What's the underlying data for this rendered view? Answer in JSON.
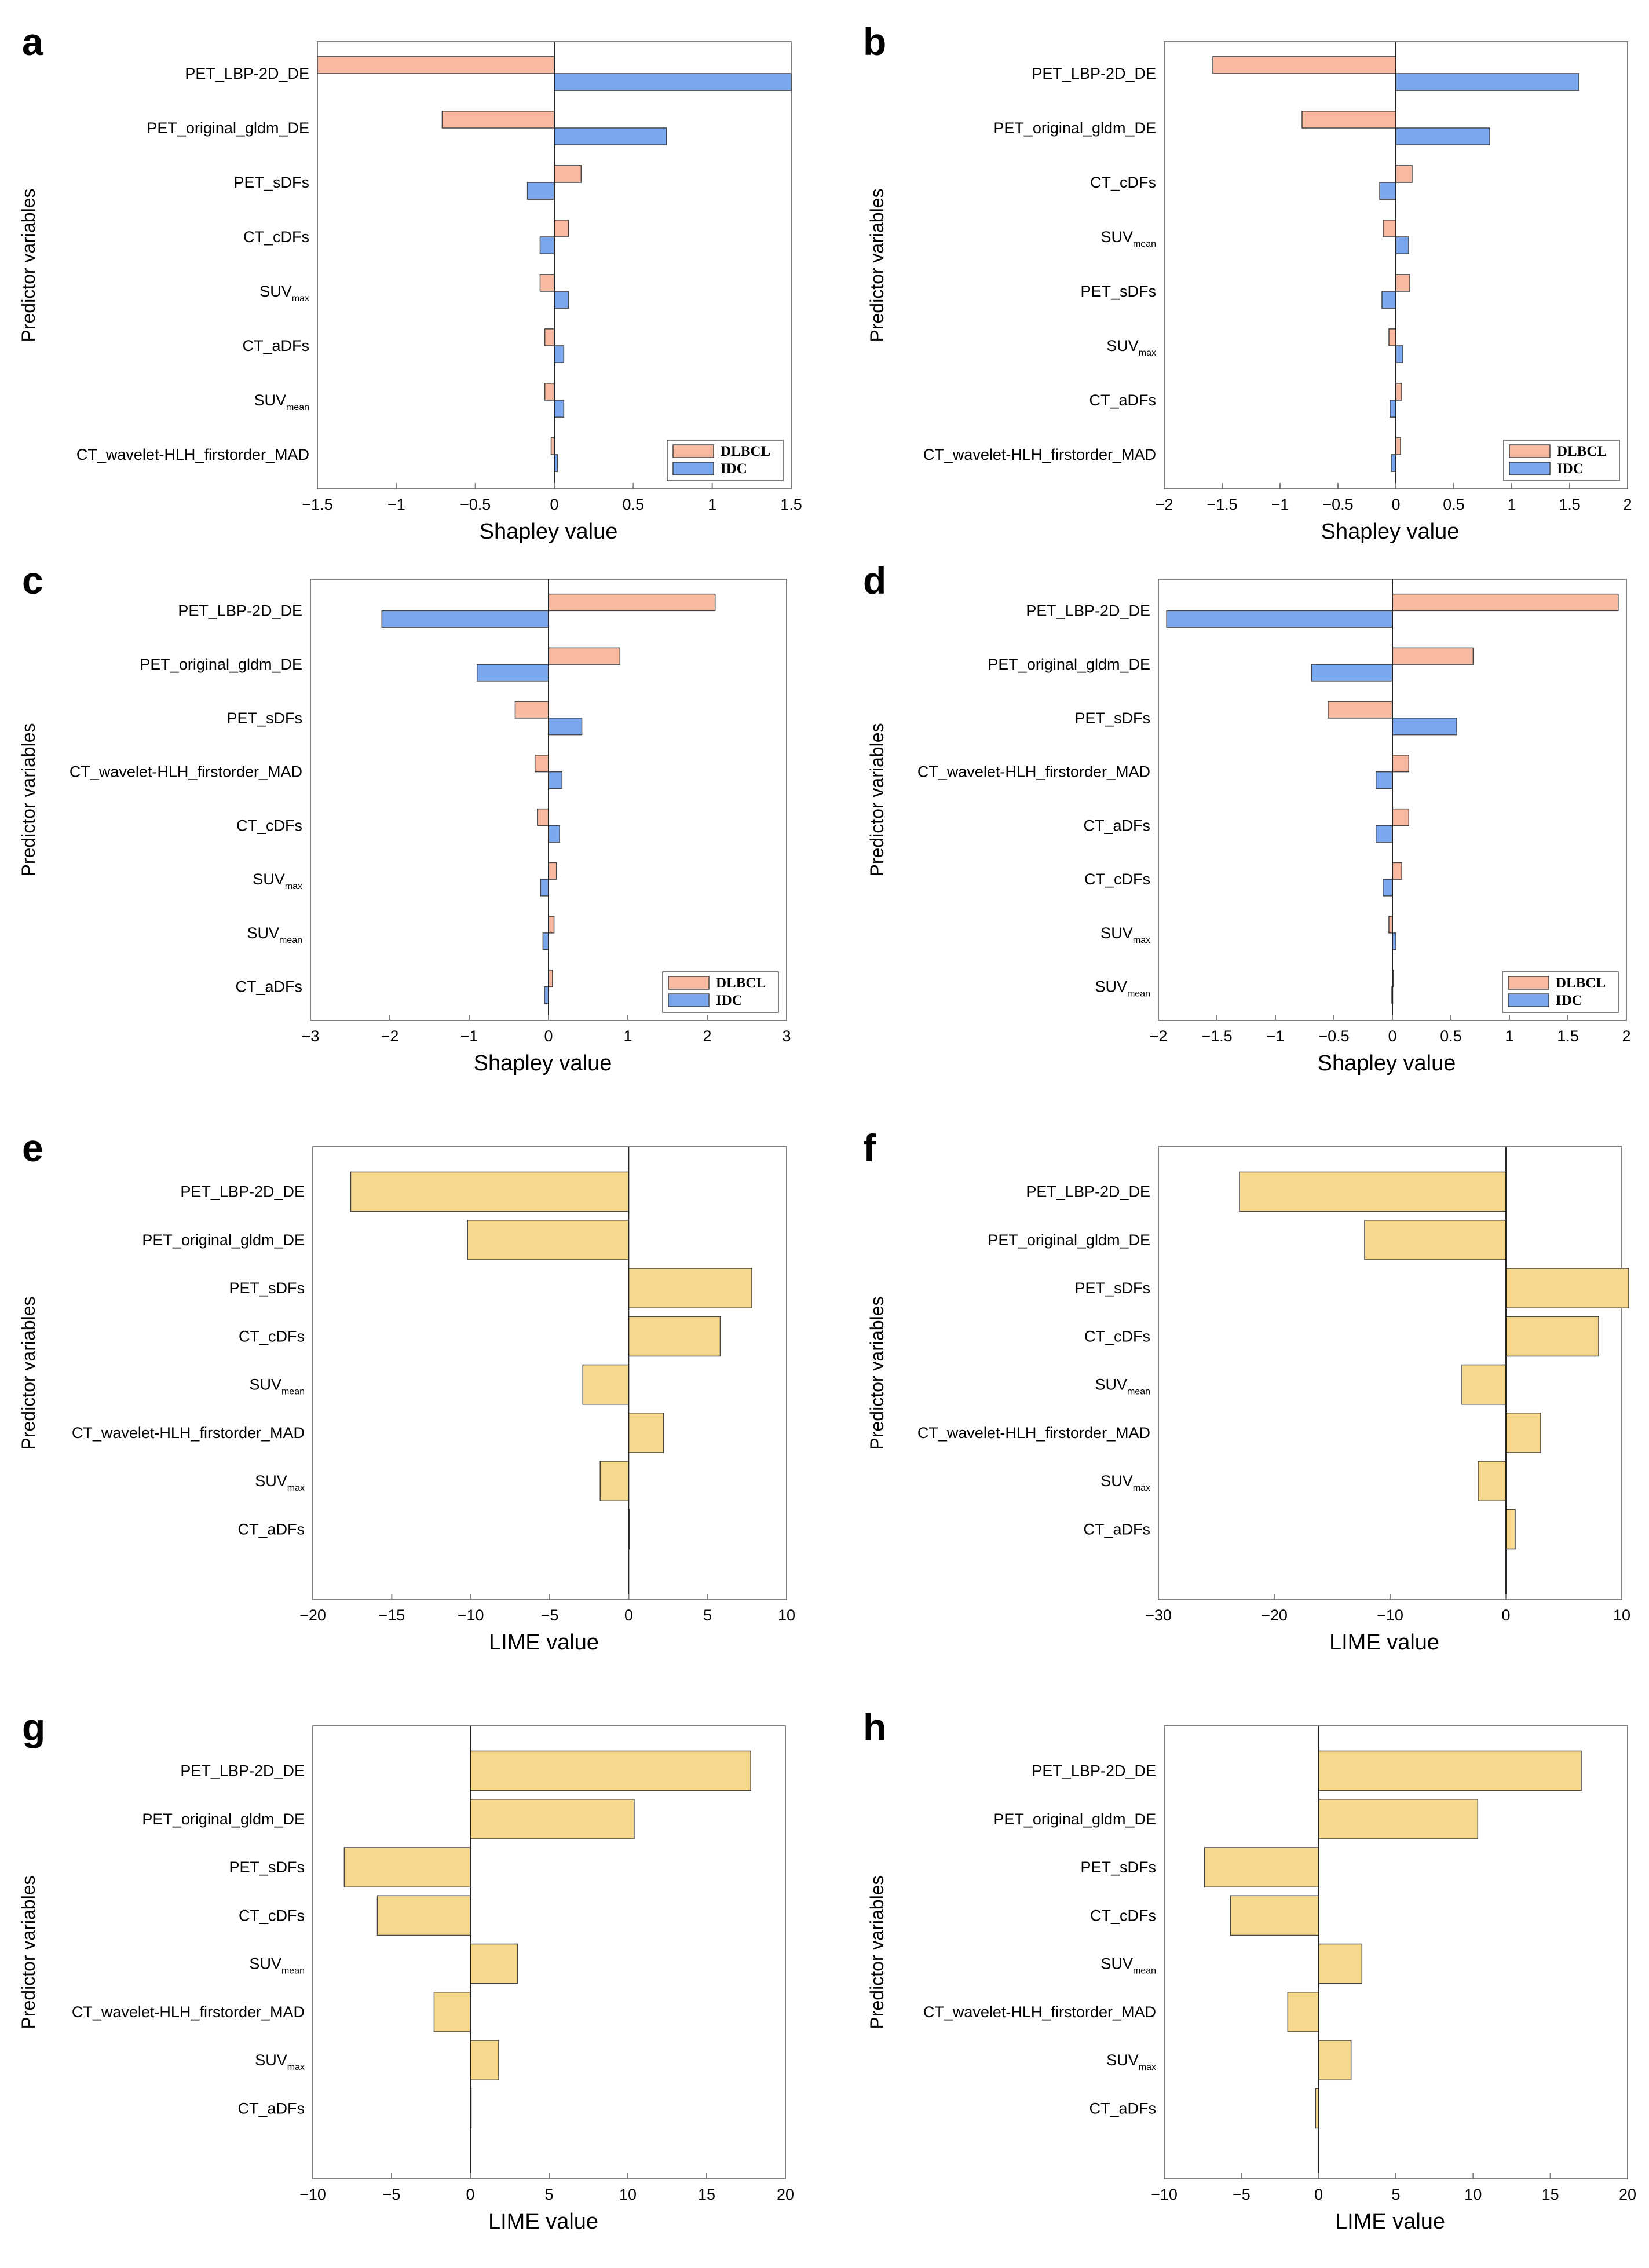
{
  "colors": {
    "dlbcl": "#F8B9A0",
    "idc": "#7BA7EE",
    "lime": "#F6D98C",
    "edge": "#444444",
    "axis": "#808080"
  },
  "chart_data": [
    {
      "panel": "a",
      "type": "bar",
      "orientation": "horizontal",
      "mode": "shap",
      "xlabel": "Shapley value",
      "ylabel": "Predictor variables",
      "xlim": [
        -1.5,
        1.5
      ],
      "xticks": [
        "-1.5",
        "-1",
        "-0.5",
        "0",
        "0.5",
        "1",
        "1.5"
      ],
      "categories": [
        "PET_LBP-2D_DE",
        "PET_original_gldm_DE",
        "PET_sDFs",
        "CT_cDFs",
        "SUVmax",
        "CT_aDFs",
        "SUVmean",
        "CT_wavelet-HLH_firstorder_MAD"
      ],
      "series": [
        {
          "name": "DLBCL",
          "values": [
            -1.5,
            -0.71,
            0.17,
            0.09,
            -0.09,
            -0.06,
            -0.06,
            -0.02
          ]
        },
        {
          "name": "IDC",
          "values": [
            1.5,
            0.71,
            -0.17,
            -0.09,
            0.09,
            0.06,
            0.06,
            0.02
          ]
        }
      ],
      "legend": [
        "DLBCL",
        "IDC"
      ],
      "legend_position": "bottom-right"
    },
    {
      "panel": "b",
      "type": "bar",
      "orientation": "horizontal",
      "mode": "shap",
      "xlabel": "Shapley value",
      "ylabel": "Predictor variables",
      "xlim": [
        -2,
        2
      ],
      "xticks": [
        "-2",
        "-1.5",
        "-1",
        "-0.5",
        "0",
        "0.5",
        "1",
        "1.5",
        "2"
      ],
      "categories": [
        "PET_LBP-2D_DE",
        "PET_original_gldm_DE",
        "CT_cDFs",
        "SUVmean",
        "PET_sDFs",
        "SUVmax",
        "CT_aDFs",
        "CT_wavelet-HLH_firstorder_MAD"
      ],
      "series": [
        {
          "name": "DLBCL",
          "values": [
            -1.58,
            -0.81,
            0.14,
            -0.11,
            0.12,
            -0.06,
            0.05,
            0.04
          ]
        },
        {
          "name": "IDC",
          "values": [
            1.58,
            0.81,
            -0.14,
            0.11,
            -0.12,
            0.06,
            -0.05,
            -0.04
          ]
        }
      ],
      "legend": [
        "DLBCL",
        "IDC"
      ],
      "legend_position": "bottom-right"
    },
    {
      "panel": "c",
      "type": "bar",
      "orientation": "horizontal",
      "mode": "shap",
      "xlabel": "Shapley value",
      "ylabel": "Predictor variables",
      "xlim": [
        -3,
        3
      ],
      "xticks": [
        "-3",
        "-2",
        "-1",
        "0",
        "1",
        "2",
        "3"
      ],
      "categories": [
        "PET_LBP-2D_DE",
        "PET_original_gldm_DE",
        "PET_sDFs",
        "CT_wavelet-HLH_firstorder_MAD",
        "CT_cDFs",
        "SUVmax",
        "SUVmean",
        "CT_aDFs"
      ],
      "series": [
        {
          "name": "DLBCL",
          "values": [
            2.1,
            0.9,
            -0.42,
            -0.17,
            -0.14,
            0.1,
            0.07,
            0.05
          ]
        },
        {
          "name": "IDC",
          "values": [
            -2.1,
            -0.9,
            0.42,
            0.17,
            0.14,
            -0.1,
            -0.07,
            -0.05
          ]
        }
      ],
      "legend": [
        "DLBCL",
        "IDC"
      ],
      "legend_position": "bottom-right"
    },
    {
      "panel": "d",
      "type": "bar",
      "orientation": "horizontal",
      "mode": "shap",
      "xlabel": "Shapley value",
      "ylabel": "Predictor variables",
      "xlim": [
        -2,
        2
      ],
      "xticks": [
        "-2",
        "-1.5",
        "-1",
        "-0.5",
        "0",
        "0.5",
        "1",
        "1.5",
        "2"
      ],
      "categories": [
        "PET_LBP-2D_DE",
        "PET_original_gldm_DE",
        "PET_sDFs",
        "CT_wavelet-HLH_firstorder_MAD",
        "CT_aDFs",
        "CT_cDFs",
        "SUVmax",
        "SUVmean"
      ],
      "series": [
        {
          "name": "DLBCL",
          "values": [
            1.93,
            0.69,
            -0.55,
            0.14,
            0.14,
            0.08,
            -0.03,
            0.005
          ]
        },
        {
          "name": "IDC",
          "values": [
            -1.93,
            -0.69,
            0.55,
            -0.14,
            -0.14,
            -0.08,
            0.03,
            -0.005
          ]
        }
      ],
      "legend": [
        "DLBCL",
        "IDC"
      ],
      "legend_position": "bottom-right"
    },
    {
      "panel": "e",
      "type": "bar",
      "orientation": "horizontal",
      "mode": "lime",
      "xlabel": "LIME value",
      "ylabel": "Predictor variables",
      "xlim": [
        -20,
        10
      ],
      "xticks": [
        "-20",
        "-15",
        "-10",
        "-5",
        "0",
        "5",
        "10"
      ],
      "categories": [
        "PET_LBP-2D_DE",
        "PET_original_gldm_DE",
        "PET_sDFs",
        "CT_cDFs",
        "SUVmean",
        "CT_wavelet-HLH_firstorder_MAD",
        "SUVmax",
        "CT_aDFs"
      ],
      "values": [
        -17.6,
        -10.2,
        7.8,
        5.8,
        -2.9,
        2.2,
        -1.8,
        0.05
      ]
    },
    {
      "panel": "f",
      "type": "bar",
      "orientation": "horizontal",
      "mode": "lime",
      "xlabel": "LIME value",
      "ylabel": "Predictor variables",
      "xlim": [
        -30,
        10
      ],
      "xticks": [
        "-30",
        "-20",
        "-10",
        "0",
        "10"
      ],
      "categories": [
        "PET_LBP-2D_DE",
        "PET_original_gldm_DE",
        "PET_sDFs",
        "CT_cDFs",
        "SUVmean",
        "CT_wavelet-HLH_firstorder_MAD",
        "SUVmax",
        "CT_aDFs"
      ],
      "values": [
        -23,
        -12.2,
        10.6,
        8,
        -3.8,
        3,
        -2.4,
        0.8
      ]
    },
    {
      "panel": "g",
      "type": "bar",
      "orientation": "horizontal",
      "mode": "lime",
      "xlabel": "LIME value",
      "ylabel": "Predictor variables",
      "xlim": [
        -10,
        20
      ],
      "xticks": [
        "-10",
        "-5",
        "0",
        "5",
        "10",
        "15",
        "20"
      ],
      "categories": [
        "PET_LBP-2D_DE",
        "PET_original_gldm_DE",
        "PET_sDFs",
        "CT_cDFs",
        "SUVmean",
        "CT_wavelet-HLH_firstorder_MAD",
        "SUVmax",
        "CT_aDFs"
      ],
      "values": [
        17.8,
        10.4,
        -8,
        -5.9,
        3,
        -2.3,
        1.8,
        0.05
      ]
    },
    {
      "panel": "h",
      "type": "bar",
      "orientation": "horizontal",
      "mode": "lime",
      "xlabel": "LIME value",
      "ylabel": "Predictor variables",
      "xlim": [
        -10,
        20
      ],
      "xticks": [
        "-10",
        "-5",
        "0",
        "5",
        "10",
        "15",
        "20"
      ],
      "categories": [
        "PET_LBP-2D_DE",
        "PET_original_gldm_DE",
        "PET_sDFs",
        "CT_cDFs",
        "SUVmean",
        "CT_wavelet-HLH_firstorder_MAD",
        "SUVmax",
        "CT_aDFs"
      ],
      "values": [
        17,
        10.3,
        -7.4,
        -5.7,
        2.8,
        -2,
        2.1,
        -0.2
      ]
    }
  ]
}
